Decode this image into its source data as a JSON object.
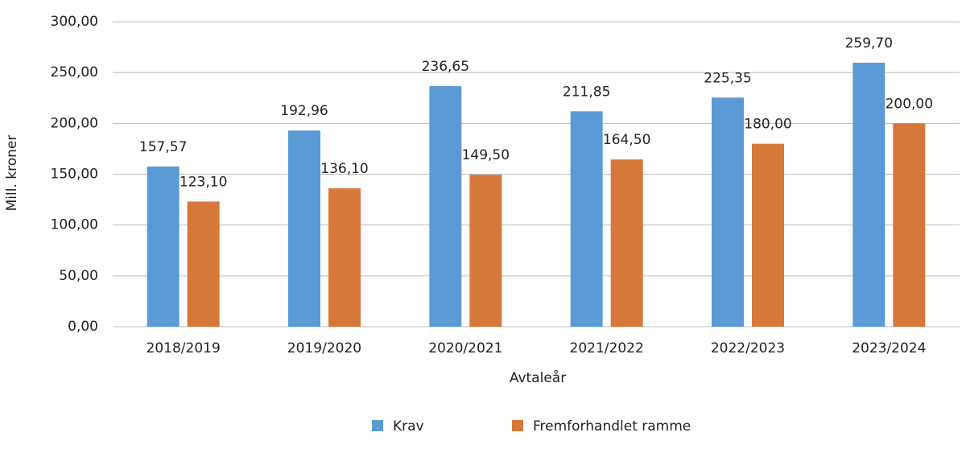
{
  "chart_data": {
    "type": "bar",
    "categories": [
      "2018/2019",
      "2019/2020",
      "2020/2021",
      "2021/2022",
      "2022/2023",
      "2023/2024"
    ],
    "series": [
      {
        "name": "Krav",
        "color": "#5b9bd5",
        "values": [
          157.57,
          192.96,
          236.65,
          211.85,
          225.35,
          259.7
        ],
        "value_labels": [
          "157,57",
          "192,96",
          "236,65",
          "211,85",
          "225,35",
          "259,70"
        ]
      },
      {
        "name": "Fremforhandlet ramme",
        "color": "#d6783a",
        "values": [
          123.1,
          136.1,
          149.5,
          164.5,
          180,
          200
        ],
        "value_labels": [
          "123,10",
          "136,10",
          "149,50",
          "164,50",
          "180,00",
          "200,00"
        ]
      }
    ],
    "x_label": "Avtaleår",
    "y_label": "Mill. kroner",
    "ylim": [
      0,
      300
    ],
    "yticks": [
      {
        "value": 0,
        "label": "0,00"
      },
      {
        "value": 50,
        "label": "50,00"
      },
      {
        "value": 100,
        "label": "100,00"
      },
      {
        "value": 150,
        "label": "150,00"
      },
      {
        "value": 200,
        "label": "200,00"
      },
      {
        "value": 250,
        "label": "250,00"
      },
      {
        "value": 300,
        "label": "300,00"
      }
    ],
    "grid": true,
    "legend": "bottom"
  }
}
